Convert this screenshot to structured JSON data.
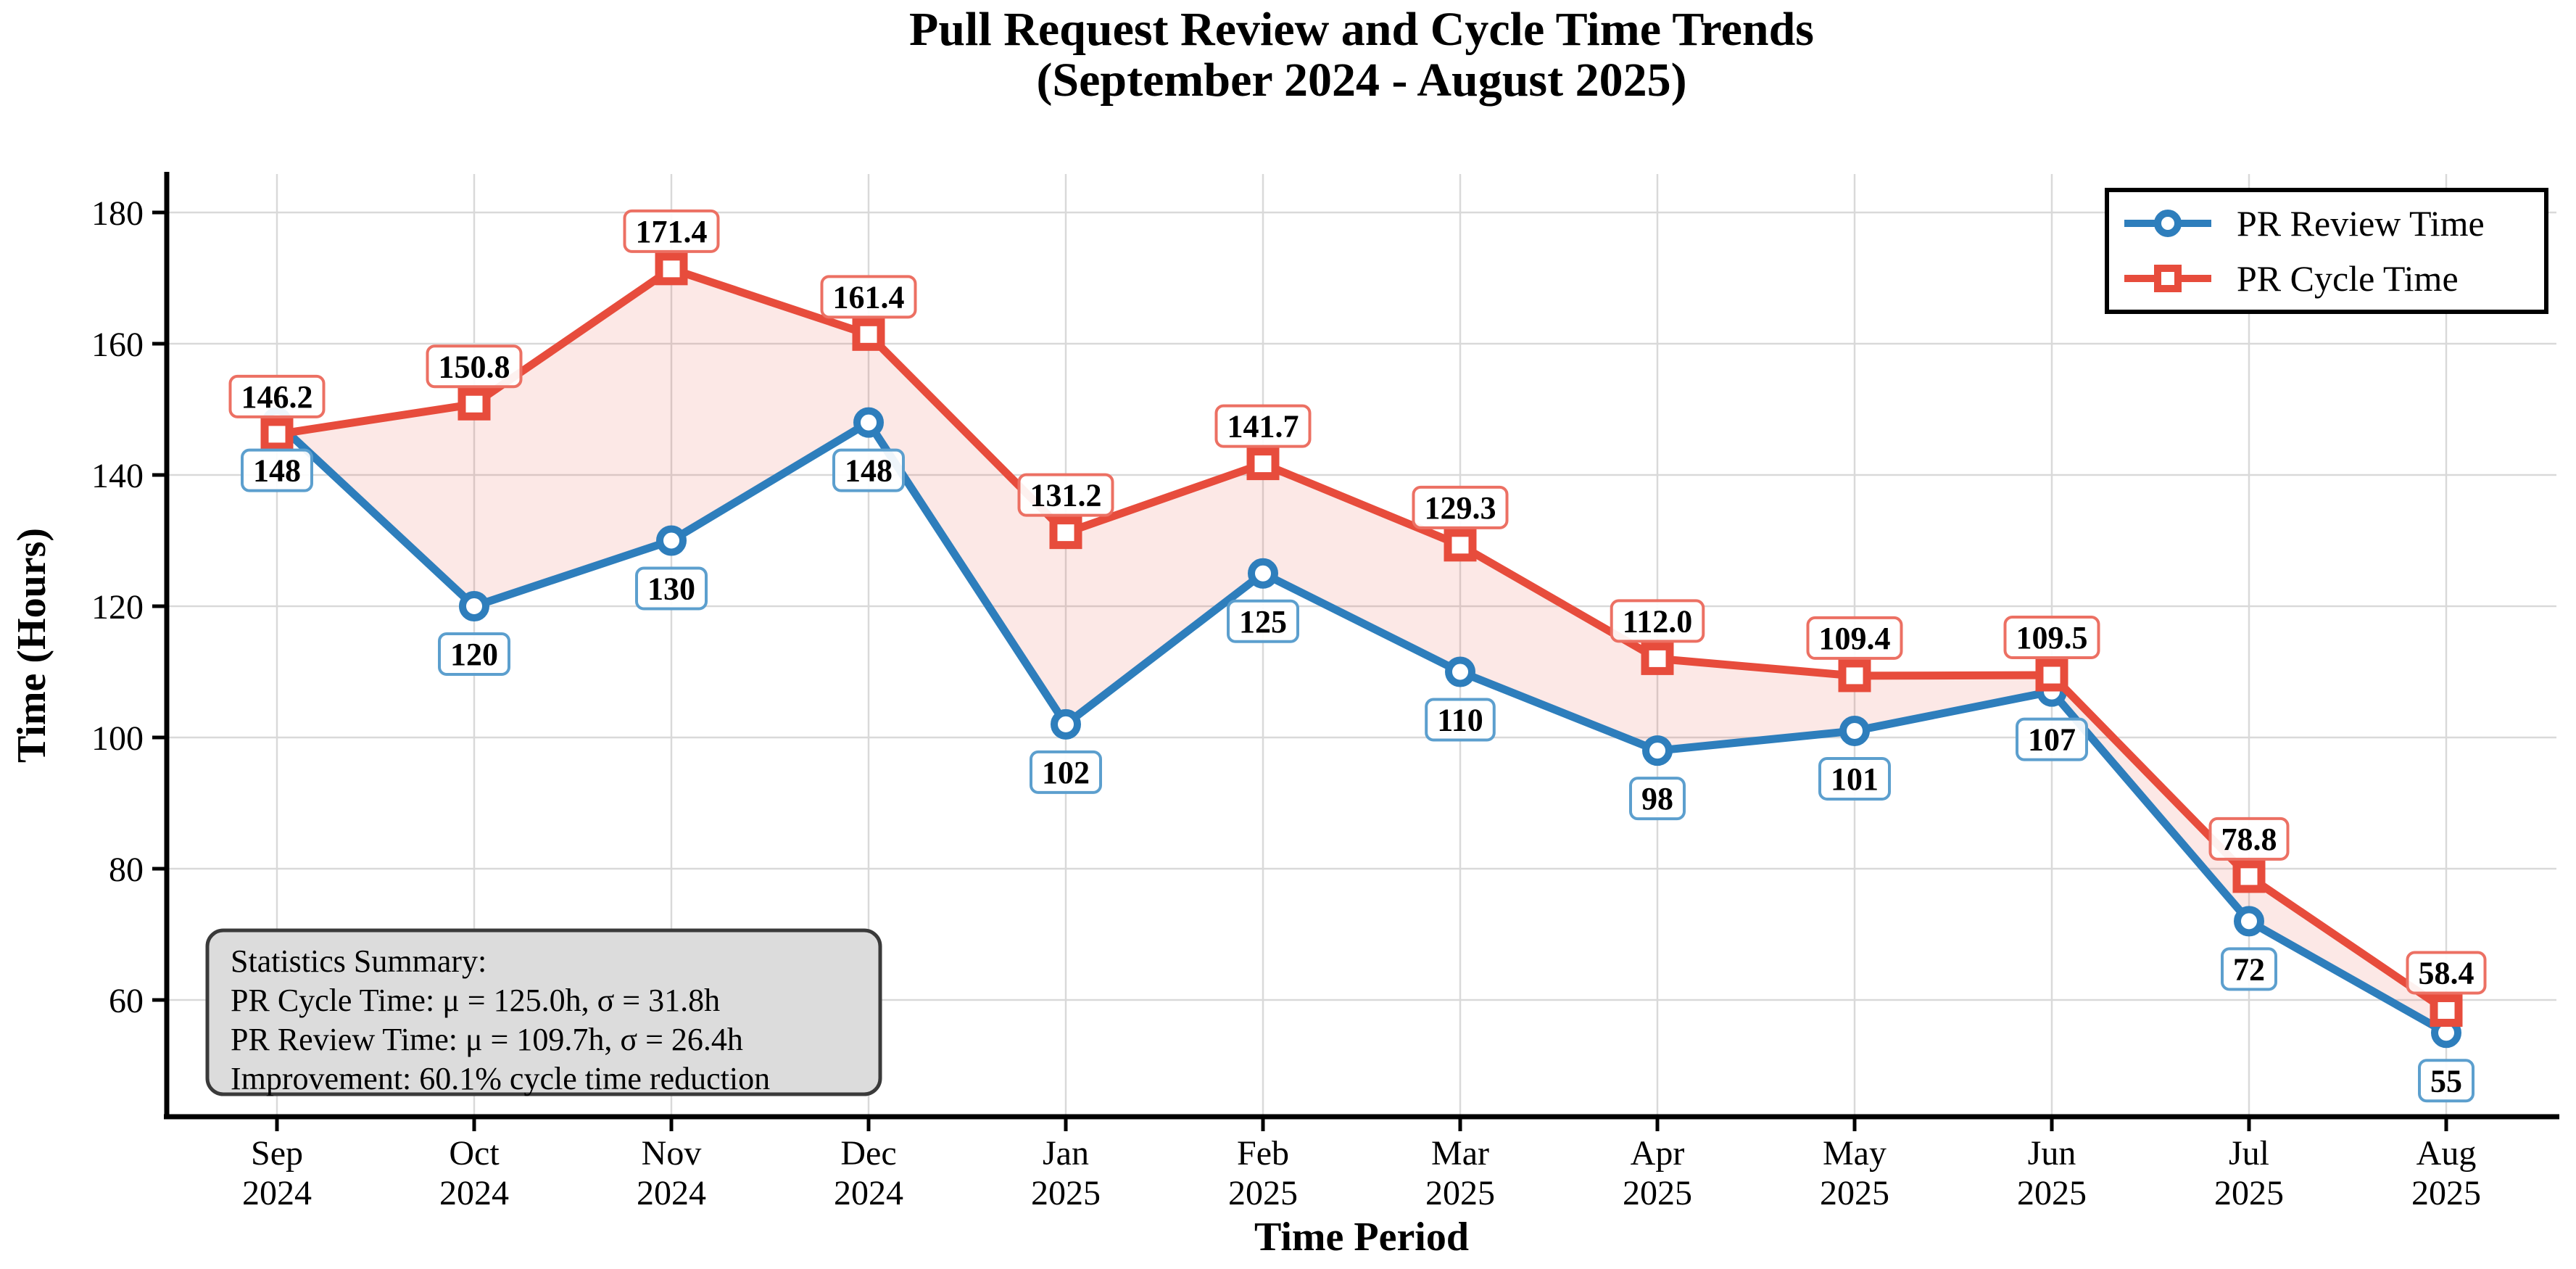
{
  "header": {
    "title_line1": "Pull Request Review and Cycle Time Trends",
    "title_line2": "(September 2024 - August 2025)"
  },
  "chart_data": {
    "type": "line",
    "categories": [
      [
        "Sep",
        "2024"
      ],
      [
        "Oct",
        "2024"
      ],
      [
        "Nov",
        "2024"
      ],
      [
        "Dec",
        "2024"
      ],
      [
        "Jan",
        "2025"
      ],
      [
        "Feb",
        "2025"
      ],
      [
        "Mar",
        "2025"
      ],
      [
        "Apr",
        "2025"
      ],
      [
        "May",
        "2025"
      ],
      [
        "Jun",
        "2025"
      ],
      [
        "Jul",
        "2025"
      ],
      [
        "Aug",
        "2025"
      ]
    ],
    "series": [
      {
        "name": "PR Review Time",
        "marker": "circle",
        "color": "#2E7EBC",
        "label_border_color": "#5C9FCE",
        "values": [
          148,
          120,
          130,
          148,
          102,
          125,
          110,
          98,
          101,
          107,
          72,
          55
        ],
        "point_labels": [
          "148",
          "120",
          "130",
          "148",
          "102",
          "125",
          "110",
          "98",
          "101",
          "107",
          "72",
          "55"
        ],
        "label_placement": "below"
      },
      {
        "name": "PR Cycle Time",
        "marker": "square",
        "color": "#E74C3C",
        "label_border_color": "#EC7063",
        "values": [
          146.2,
          150.8,
          171.4,
          161.4,
          131.2,
          141.7,
          129.3,
          112.0,
          109.4,
          109.5,
          78.8,
          58.4
        ],
        "point_labels": [
          "146.2",
          "150.8",
          "171.4",
          "161.4",
          "131.2",
          "141.7",
          "129.3",
          "112.0",
          "109.4",
          "109.5",
          "78.8",
          "58.4"
        ],
        "label_placement": "above"
      }
    ],
    "fill_between": true,
    "fill_between_color": "rgba(231,76,60,0.13)",
    "xlabel": "Time Period",
    "ylabel": "Time (Hours)",
    "yticks": [
      60,
      80,
      100,
      120,
      140,
      160,
      180
    ],
    "ylim": [
      42.2,
      185.9
    ],
    "grid": true,
    "grid_color": "#D9D9D9",
    "legend_position": "upper right"
  },
  "stats_box": {
    "bg_color": "#DCDCDC",
    "border_color": "#3A3A3A",
    "lines": [
      "Statistics Summary:",
      "PR Cycle Time: μ = 125.0h, σ = 31.8h",
      "PR Review Time: μ = 109.7h, σ = 26.4h",
      "Improvement: 60.1% cycle time reduction"
    ]
  }
}
